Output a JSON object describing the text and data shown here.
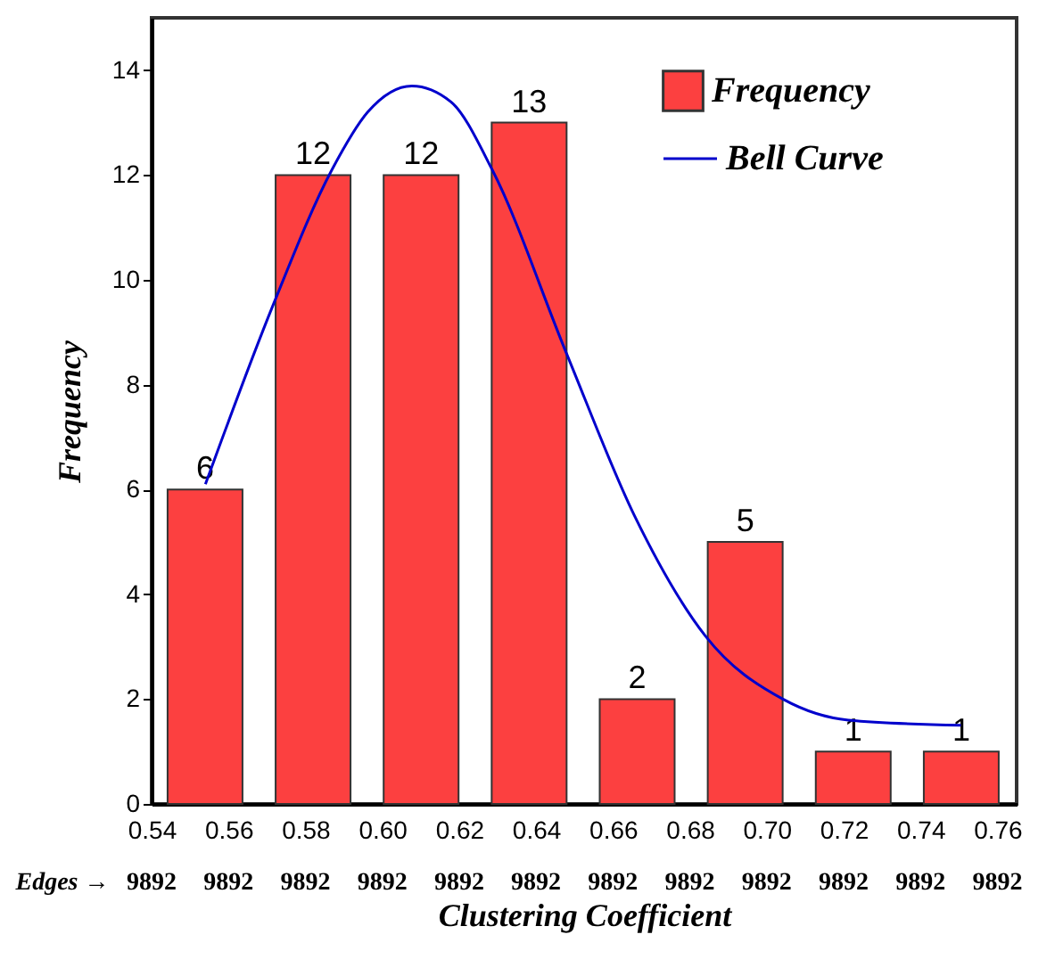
{
  "chart_data": {
    "type": "bar",
    "xlabel": "Clustering Coefficient",
    "ylabel": "Frequency",
    "annotations": [
      "Edges →",
      "9892",
      "9892",
      "9892",
      "9892",
      "9892",
      "9892",
      "9892",
      "9892",
      "9892",
      "9892",
      "9892",
      "9892"
    ],
    "series": [
      {
        "name": "Frequency",
        "color": "#fc4040",
        "x": [
          0.5539,
          0.582,
          0.6101,
          0.6382,
          0.6663,
          0.6944,
          0.7225,
          0.7506
        ],
        "values": [
          6,
          12,
          12,
          13,
          2,
          5,
          1,
          1
        ],
        "value_labels": [
          "6",
          "12",
          "12",
          "13",
          "2",
          "5",
          "1",
          "1"
        ]
      },
      {
        "name": "Bell Curve",
        "type": "line",
        "color": "#0000cc",
        "x": [
          0.554,
          0.5715,
          0.5869,
          0.5962,
          0.6077,
          0.6178,
          0.6286,
          0.6479,
          0.6656,
          0.6841,
          0.7042,
          0.7212,
          0.7505
        ],
        "values": [
          6.1,
          9.5,
          12.1,
          13.2,
          13.7,
          13.4,
          12.1,
          8.6,
          5.5,
          3.2,
          2.0,
          1.6,
          1.5
        ]
      }
    ],
    "xlim": [
      0.54,
      0.765
    ],
    "xticks": [
      {
        "value": 0.54,
        "label": "0.54"
      },
      {
        "value": 0.56,
        "label": "0.56"
      },
      {
        "value": 0.58,
        "label": "0.58"
      },
      {
        "value": 0.6,
        "label": "0.60"
      },
      {
        "value": 0.62,
        "label": "0.62"
      },
      {
        "value": 0.64,
        "label": "0.64"
      },
      {
        "value": 0.66,
        "label": "0.66"
      },
      {
        "value": 0.68,
        "label": "0.68"
      },
      {
        "value": 0.7,
        "label": "0.70"
      },
      {
        "value": 0.72,
        "label": "0.72"
      },
      {
        "value": 0.74,
        "label": "0.74"
      },
      {
        "value": 0.76,
        "label": "0.76"
      }
    ],
    "ylim": [
      0,
      15
    ],
    "yticks": [
      0,
      2,
      4,
      6,
      8,
      10,
      12,
      14
    ],
    "grid": false,
    "legend": "top right"
  }
}
